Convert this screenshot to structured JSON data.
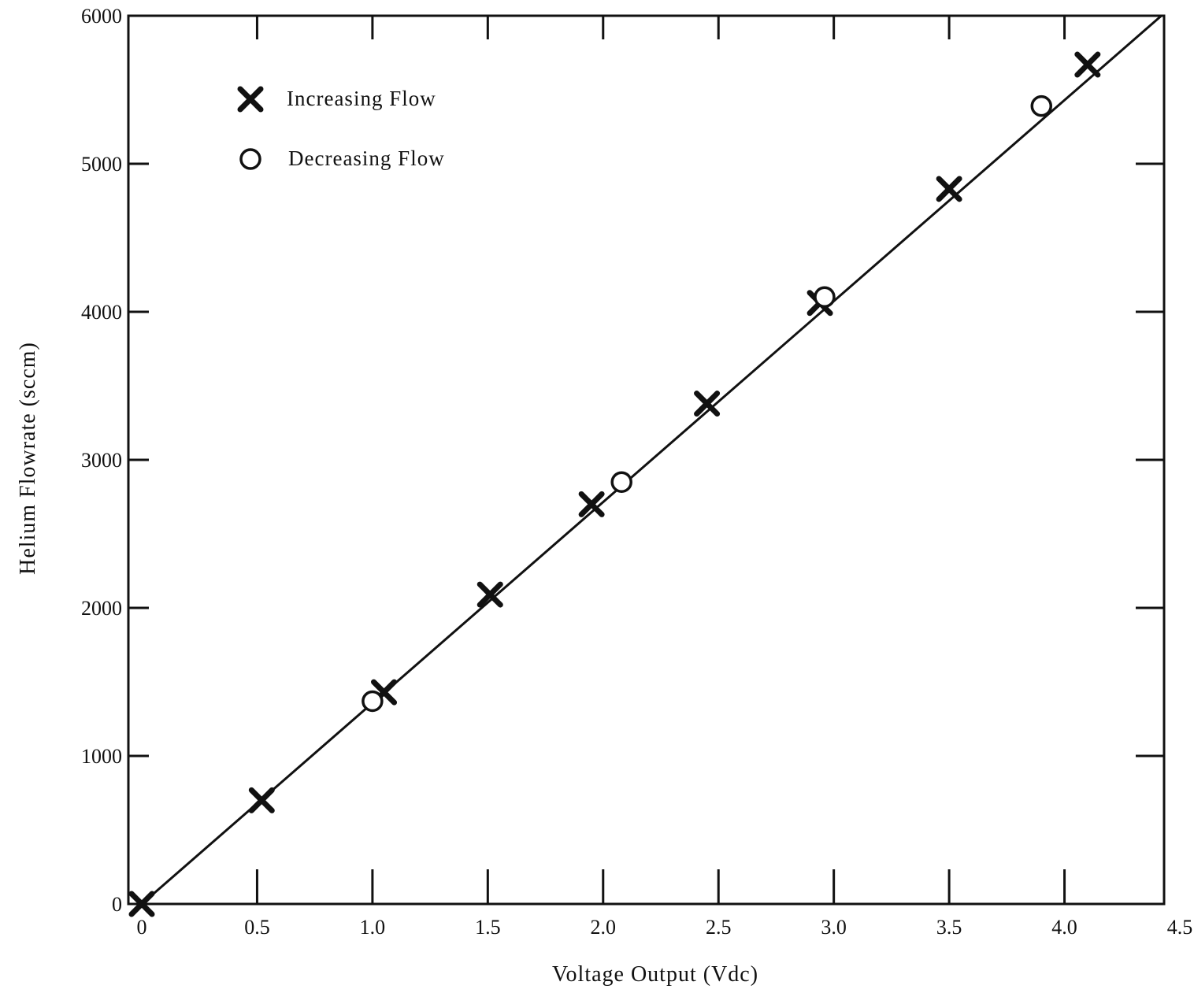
{
  "chart_data": {
    "type": "scatter",
    "title": "",
    "xlabel": "Voltage Output (Vdc)",
    "ylabel": "Helium Flowrate (sccm)",
    "xlim": [
      0,
      4.5
    ],
    "ylim": [
      0,
      6000
    ],
    "x_ticks": [
      0,
      0.5,
      1.0,
      1.5,
      2.0,
      2.5,
      3.0,
      3.5,
      4.0,
      4.5
    ],
    "x_tick_labels": [
      "0",
      "0.5",
      "1.0",
      "1.5",
      "2.0",
      "2.5",
      "3.0",
      "3.5",
      "4.0",
      "4.5"
    ],
    "y_ticks": [
      0,
      1000,
      2000,
      3000,
      4000,
      5000,
      6000
    ],
    "y_tick_labels": [
      "0",
      "1000",
      "2000",
      "3000",
      "4000",
      "5000",
      "6000"
    ],
    "grid": false,
    "legend": {
      "position": "top-left"
    },
    "series": [
      {
        "name": "Increasing Flow",
        "marker": "x",
        "points": [
          {
            "x": 0.0,
            "y": 0
          },
          {
            "x": 0.52,
            "y": 700
          },
          {
            "x": 1.05,
            "y": 1430
          },
          {
            "x": 1.51,
            "y": 2090
          },
          {
            "x": 1.95,
            "y": 2700
          },
          {
            "x": 2.45,
            "y": 3380
          },
          {
            "x": 2.94,
            "y": 4060
          },
          {
            "x": 3.5,
            "y": 4830
          },
          {
            "x": 4.1,
            "y": 5670
          }
        ]
      },
      {
        "name": "Decreasing Flow",
        "marker": "o",
        "points": [
          {
            "x": 1.0,
            "y": 1370
          },
          {
            "x": 2.08,
            "y": 2850
          },
          {
            "x": 2.96,
            "y": 4100
          },
          {
            "x": 3.9,
            "y": 5390
          }
        ]
      }
    ],
    "fit_line": {
      "x": [
        0,
        4.42
      ],
      "y": [
        0,
        6000
      ]
    },
    "colors": {
      "ink": "#111111",
      "background": "#ffffff"
    }
  }
}
